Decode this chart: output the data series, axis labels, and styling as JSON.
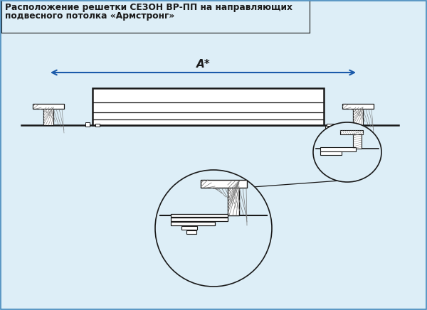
{
  "title_line1": "Расположение решетки СЕЗОН ВР-ПП на направляющих",
  "title_line2": "подвесного потолка «Армстронг»",
  "bg_color": "#ddeef7",
  "draw_color": "#1a1a1a",
  "blue_color": "#1a5aaa",
  "dim_label": "А*",
  "title_fontsize": 8.8,
  "border_color": "#4488bb"
}
